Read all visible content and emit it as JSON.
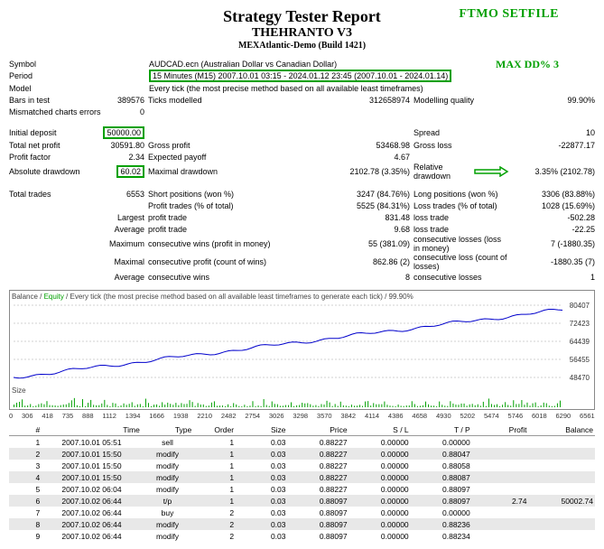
{
  "header": {
    "title": "Strategy Tester Report",
    "strategy": "THEHRANTO V3",
    "server": "MEXAtlantic-Demo (Build 1421)",
    "ftmo_label": "FTMO SETFILE",
    "maxdd_label": "MAX DD% 3"
  },
  "info": {
    "symbol_label": "Symbol",
    "symbol_value": "AUDCAD.ecn (Australian Dollar vs Canadian Dollar)",
    "period_label": "Period",
    "period_value": "15 Minutes (M15) 2007.10.01 03:15 - 2024.01.12 23:45 (2007.10.01 - 2024.01.14)",
    "model_label": "Model",
    "model_value": "Every tick (the most precise method based on all available least timeframes)",
    "bars_label": "Bars in test",
    "bars_value": "389576",
    "ticks_label": "Ticks modelled",
    "ticks_value": "312658974",
    "quality_label": "Modelling quality",
    "quality_value": "99.90%",
    "mismatch_label": "Mismatched charts errors",
    "mismatch_value": "0"
  },
  "stats": {
    "deposit_label": "Initial deposit",
    "deposit": "50000.00",
    "spread_label": "Spread",
    "spread": "10",
    "netprofit_label": "Total net profit",
    "netprofit": "30591.80",
    "grossprofit_label": "Gross profit",
    "grossprofit": "53468.98",
    "grossloss_label": "Gross loss",
    "grossloss": "-22877.17",
    "pf_label": "Profit factor",
    "pf": "2.34",
    "ep_label": "Expected payoff",
    "ep": "4.67",
    "absdd_label": "Absolute drawdown",
    "absdd": "60.02",
    "maxdd_label": "Maximal drawdown",
    "maxdd": "2102.78 (3.35%)",
    "reldd_label": "Relative drawdown",
    "reldd": "3.35% (2102.78)",
    "trades_label": "Total trades",
    "trades": "6553",
    "short_label": "Short positions (won %)",
    "short": "3247 (84.76%)",
    "long_label": "Long positions (won %)",
    "long": "3306 (83.88%)",
    "ptrades_label": "Profit trades (% of total)",
    "ptrades": "5525 (84.31%)",
    "ltrades_label": "Loss trades (% of total)",
    "ltrades": "1028 (15.69%)",
    "largest_label": "Largest",
    "lprofit_label": "profit trade",
    "lprofit": "831.48",
    "lloss_label": "loss trade",
    "lloss": "-502.28",
    "average_label": "Average",
    "aprofit_label": "profit trade",
    "aprofit": "9.68",
    "aloss_label": "loss trade",
    "aloss": "-22.25",
    "max_label": "Maximum",
    "cwins_label": "consecutive wins (profit in money)",
    "cwins": "55 (381.09)",
    "closs_label": "consecutive losses (loss in money)",
    "closs": "7 (-1880.35)",
    "maximal_label": "Maximal",
    "cprofit_label": "consecutive profit (count of wins)",
    "cprofit": "862.86 (2)",
    "cploss_label": "consecutive loss (count of losses)",
    "cploss": "-1880.35 (7)",
    "avg_label": "Average",
    "acwins_label": "consecutive wins",
    "acwins": "8",
    "acloss_label": "consecutive losses",
    "acloss": "1"
  },
  "chart": {
    "label_balance": "Balance",
    "label_equity": "Equity",
    "label_rest": " / Every tick (the most precise method based on all available least timeframes to generate each tick) / 99.90%",
    "size_label": "Size",
    "y_labels": [
      "80407",
      "72423",
      "64439",
      "56455",
      "48470"
    ],
    "x_labels": [
      "0",
      "306",
      "418",
      "735",
      "888",
      "1112",
      "1394",
      "1666",
      "1938",
      "2210",
      "2482",
      "2754",
      "3026",
      "3298",
      "3570",
      "3842",
      "4114",
      "4386",
      "4658",
      "4930",
      "5202",
      "5474",
      "5746",
      "6018",
      "6290",
      "6561"
    ],
    "line_color": "#0000cc",
    "grid_color": "#d0d0d0",
    "size_color": "#00a000",
    "balance_points": [
      [
        0,
        48470
      ],
      [
        650,
        80400
      ]
    ]
  },
  "table": {
    "headers": [
      "#",
      "Time",
      "Type",
      "Order",
      "Size",
      "Price",
      "S / L",
      "T / P",
      "Profit",
      "Balance"
    ],
    "rows": [
      {
        "n": "1",
        "time": "2007.10.01 05:51",
        "type": "sell",
        "order": "1",
        "size": "0.03",
        "price": "0.88227",
        "sl": "0.00000",
        "tp": "0.00000",
        "profit": "",
        "bal": ""
      },
      {
        "n": "2",
        "time": "2007.10.01 15:50",
        "type": "modify",
        "order": "1",
        "size": "0.03",
        "price": "0.88227",
        "sl": "0.00000",
        "tp": "0.88047",
        "profit": "",
        "bal": ""
      },
      {
        "n": "3",
        "time": "2007.10.01 15:50",
        "type": "modify",
        "order": "1",
        "size": "0.03",
        "price": "0.88227",
        "sl": "0.00000",
        "tp": "0.88058",
        "profit": "",
        "bal": ""
      },
      {
        "n": "4",
        "time": "2007.10.01 15:50",
        "type": "modify",
        "order": "1",
        "size": "0.03",
        "price": "0.88227",
        "sl": "0.00000",
        "tp": "0.88087",
        "profit": "",
        "bal": ""
      },
      {
        "n": "5",
        "time": "2007.10.02 06:04",
        "type": "modify",
        "order": "1",
        "size": "0.03",
        "price": "0.88227",
        "sl": "0.00000",
        "tp": "0.88097",
        "profit": "",
        "bal": ""
      },
      {
        "n": "6",
        "time": "2007.10.02 06:44",
        "type": "t/p",
        "order": "1",
        "size": "0.03",
        "price": "0.88097",
        "sl": "0.00000",
        "tp": "0.88097",
        "profit": "2.74",
        "bal": "50002.74"
      },
      {
        "n": "7",
        "time": "2007.10.02 06:44",
        "type": "buy",
        "order": "2",
        "size": "0.03",
        "price": "0.88097",
        "sl": "0.00000",
        "tp": "0.00000",
        "profit": "",
        "bal": ""
      },
      {
        "n": "8",
        "time": "2007.10.02 06:44",
        "type": "modify",
        "order": "2",
        "size": "0.03",
        "price": "0.88097",
        "sl": "0.00000",
        "tp": "0.88236",
        "profit": "",
        "bal": ""
      },
      {
        "n": "9",
        "time": "2007.10.02 06:44",
        "type": "modify",
        "order": "2",
        "size": "0.03",
        "price": "0.88097",
        "sl": "0.00000",
        "tp": "0.88234",
        "profit": "",
        "bal": ""
      }
    ]
  }
}
